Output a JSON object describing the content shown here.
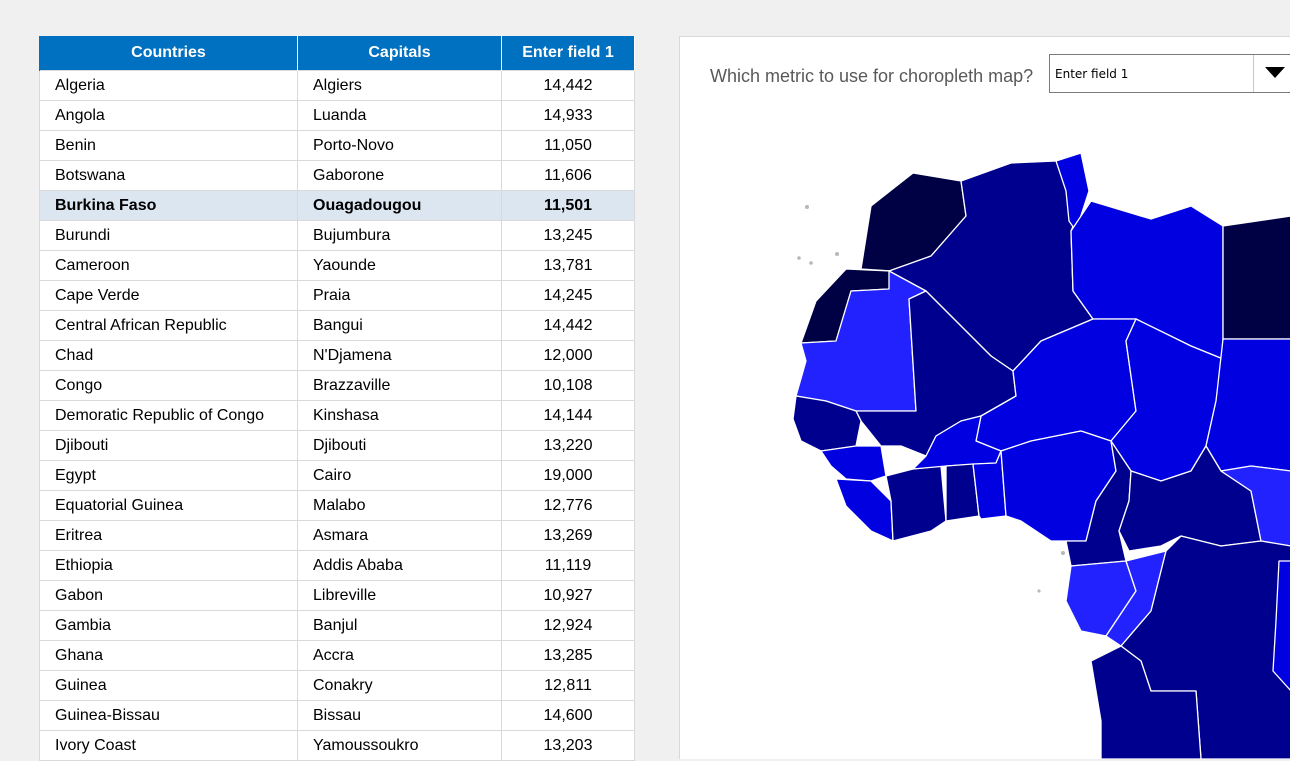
{
  "table": {
    "headers": [
      "Countries",
      "Capitals",
      "Enter field 1"
    ],
    "selected_row": 4,
    "rows": [
      [
        "Algeria",
        "Algiers",
        "14,442"
      ],
      [
        "Angola",
        "Luanda",
        "14,933"
      ],
      [
        "Benin",
        "Porto-Novo",
        "11,050"
      ],
      [
        "Botswana",
        "Gaborone",
        "11,606"
      ],
      [
        "Burkina Faso",
        "Ouagadougou",
        "11,501"
      ],
      [
        "Burundi",
        "Bujumbura",
        "13,245"
      ],
      [
        "Cameroon",
        "Yaounde",
        "13,781"
      ],
      [
        "Cape Verde",
        "Praia",
        "14,245"
      ],
      [
        "Central African Republic",
        "Bangui",
        "14,442"
      ],
      [
        "Chad",
        "N'Djamena",
        "12,000"
      ],
      [
        "Congo",
        "Brazzaville",
        "10,108"
      ],
      [
        "Demoratic Republic of Congo",
        "Kinshasa",
        "14,144"
      ],
      [
        "Djibouti",
        "Djibouti",
        "13,220"
      ],
      [
        "Egypt",
        "Cairo",
        "19,000"
      ],
      [
        "Equatorial Guinea",
        "Malabo",
        "12,776"
      ],
      [
        "Eritrea",
        "Asmara",
        "13,269"
      ],
      [
        "Ethiopia",
        "Addis Ababa",
        "11,119"
      ],
      [
        "Gabon",
        "Libreville",
        "10,927"
      ],
      [
        "Gambia",
        "Banjul",
        "12,924"
      ],
      [
        "Ghana",
        "Accra",
        "13,285"
      ],
      [
        "Guinea",
        "Conakry",
        "12,811"
      ],
      [
        "Guinea-Bissau",
        "Bissau",
        "14,600"
      ],
      [
        "Ivory Coast",
        "Yamoussoukro",
        "13,203"
      ]
    ]
  },
  "map_panel": {
    "question": "Which metric to use for choropleth map?",
    "selected_metric": "Enter field 1",
    "dropdown_icon": "triangle-down-icon"
  },
  "colors": {
    "header_bg": "#0070c0",
    "selected_row_bg": "#dce6f1",
    "choropleth_darkest": "#000045",
    "choropleth_dark": "#00008f",
    "choropleth_mid": "#0000e0",
    "choropleth_light": "#2222ff"
  }
}
